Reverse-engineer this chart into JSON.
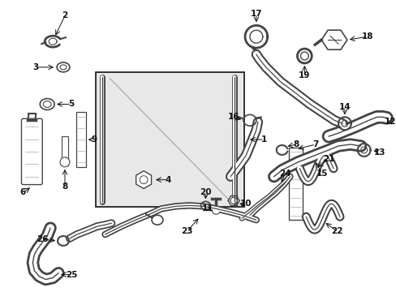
{
  "bg_color": "#ffffff",
  "fig_width": 4.89,
  "fig_height": 3.6,
  "dpi": 100
}
